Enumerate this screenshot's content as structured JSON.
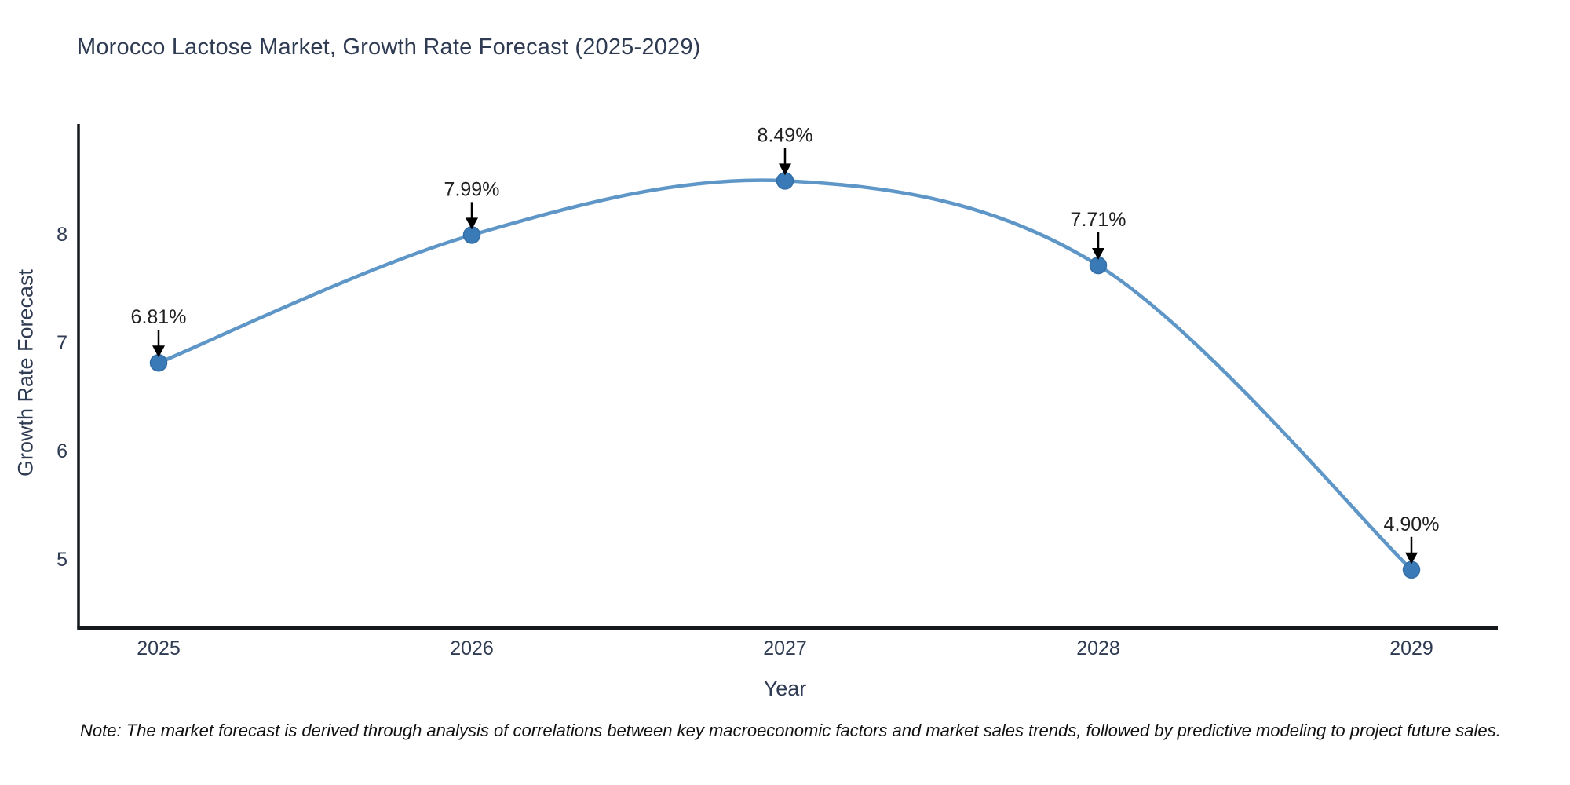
{
  "chart_data": {
    "type": "line",
    "title": "Morocco Lactose Market, Growth Rate Forecast (2025-2029)",
    "xlabel": "Year",
    "ylabel": "Growth Rate Forecast",
    "categories": [
      "2025",
      "2026",
      "2027",
      "2028",
      "2029"
    ],
    "series": [
      {
        "name": "Growth Rate Forecast",
        "values": [
          6.81,
          7.99,
          8.49,
          7.71,
          4.9
        ],
        "point_labels": [
          "6.81%",
          "7.99%",
          "8.49%",
          "7.71%",
          "4.90%"
        ]
      }
    ],
    "yticks": [
      5,
      6,
      7,
      8
    ],
    "ylim": [
      4.36,
      9.0
    ],
    "grid": false,
    "legend": "none",
    "line_style": "smooth-spline",
    "marker_style": "circle",
    "annotation_style": "value-label-with-down-arrow",
    "note": "Note: The market forecast is derived through analysis of correlations between key macroeconomic factors and market sales trends, followed by predictive modeling to project future sales.",
    "colors": {
      "line": "#5590c4",
      "marker_fill": "#3a7ab6",
      "marker_edge": "#336da5",
      "axis_line": "#15181d",
      "axis_text": "#2f3b52",
      "title_text": "#2f3b52",
      "annotation_text": "#222222",
      "arrow": "#000000",
      "background": "#ffffff"
    }
  }
}
